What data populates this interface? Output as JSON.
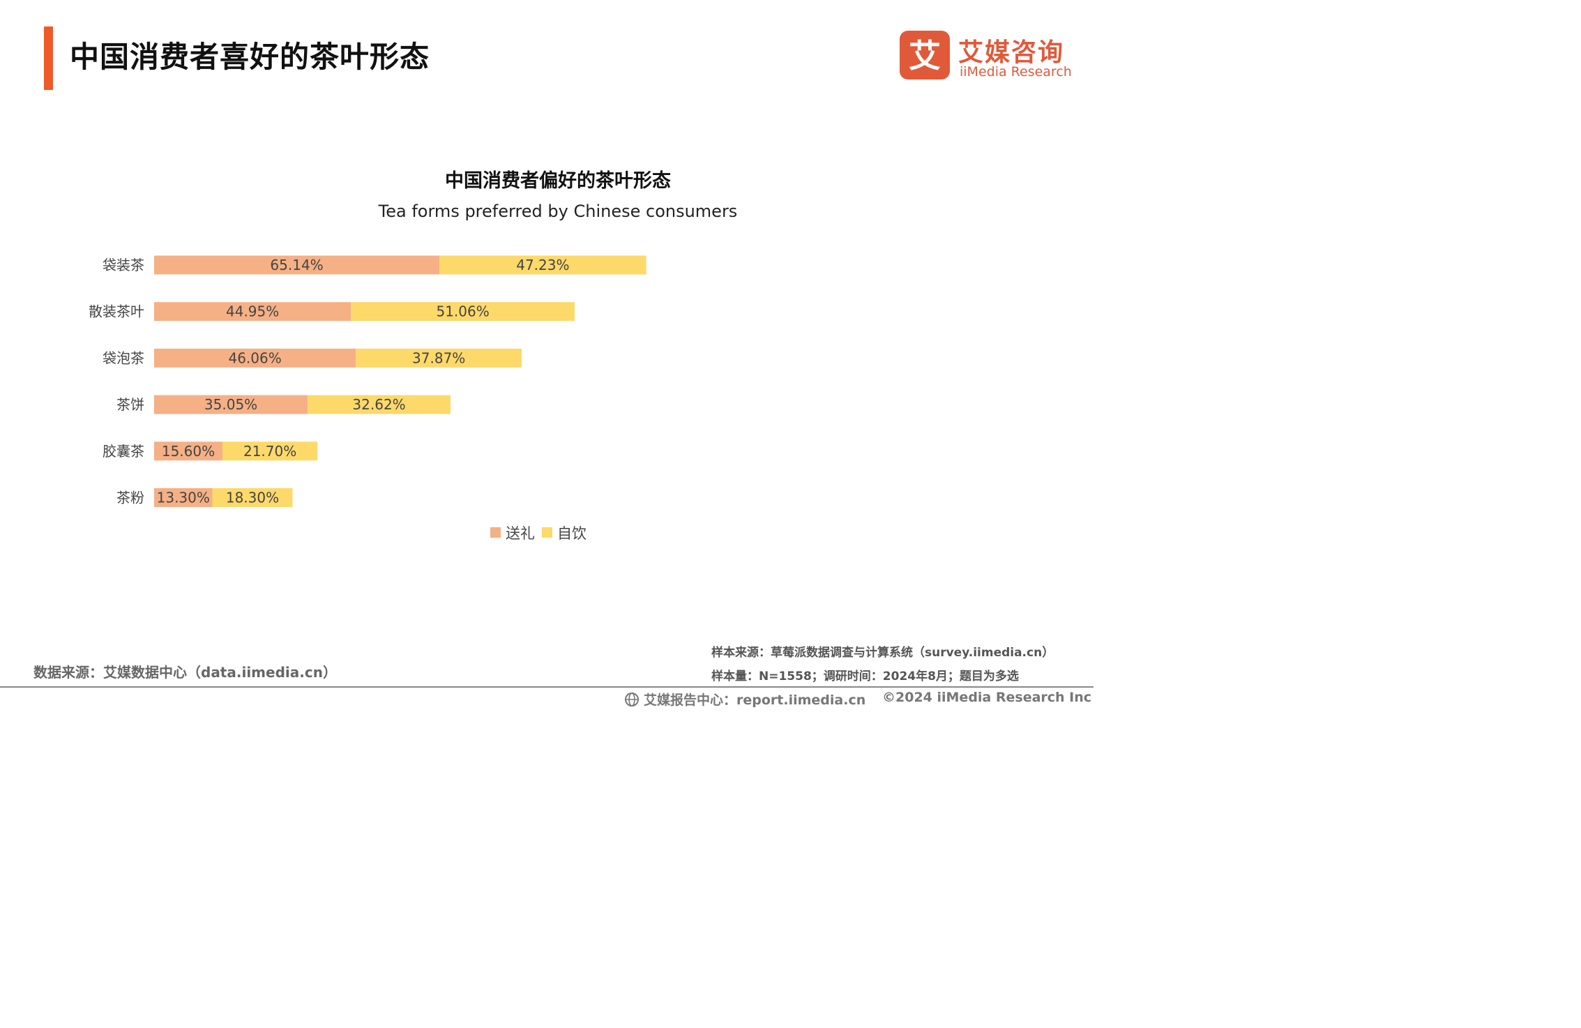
{
  "header": {
    "title": "中国消费者喜好的茶叶形态"
  },
  "logo": {
    "mark_char": "艾",
    "name_cn": "艾媒咨询",
    "name_en": "iiMedia Research"
  },
  "colors": {
    "accent": "#f05a28",
    "gift": "#f5b085",
    "self": "#fdd96a",
    "logo": "#e05a3a"
  },
  "chart_data": {
    "type": "bar",
    "orientation": "horizontal",
    "stacked": true,
    "title": "中国消费者偏好的茶叶形态",
    "subtitle": "Tea forms preferred by Chinese consumers",
    "categories": [
      "袋装茶",
      "散装茶叶",
      "袋泡茶",
      "茶饼",
      "胶囊茶",
      "茶粉"
    ],
    "series": [
      {
        "name": "送礼",
        "color": "#f5b085",
        "values": [
          65.14,
          44.95,
          46.06,
          35.05,
          15.6,
          13.3
        ],
        "labels": [
          "65.14%",
          "44.95%",
          "46.06%",
          "35.05%",
          "15.60%",
          "13.30%"
        ]
      },
      {
        "name": "自饮",
        "color": "#fdd96a",
        "values": [
          47.23,
          51.06,
          37.87,
          32.62,
          21.7,
          18.3
        ],
        "labels": [
          "47.23%",
          "51.06%",
          "37.87%",
          "32.62%",
          "21.70%",
          "18.30%"
        ]
      }
    ],
    "legend_position": "bottom",
    "grid": false
  },
  "footer": {
    "source": "数据来源：艾媒数据中心（data.iimedia.cn）",
    "sample_source": "样本来源：草莓派数据调查与计算系统（survey.iimedia.cn）",
    "sample_info": "样本量：N=1558；调研时间：2024年8月；题目为多选",
    "report_center": "艾媒报告中心：report.iimedia.cn",
    "copyright": "©2024  iiMedia Research  Inc"
  }
}
